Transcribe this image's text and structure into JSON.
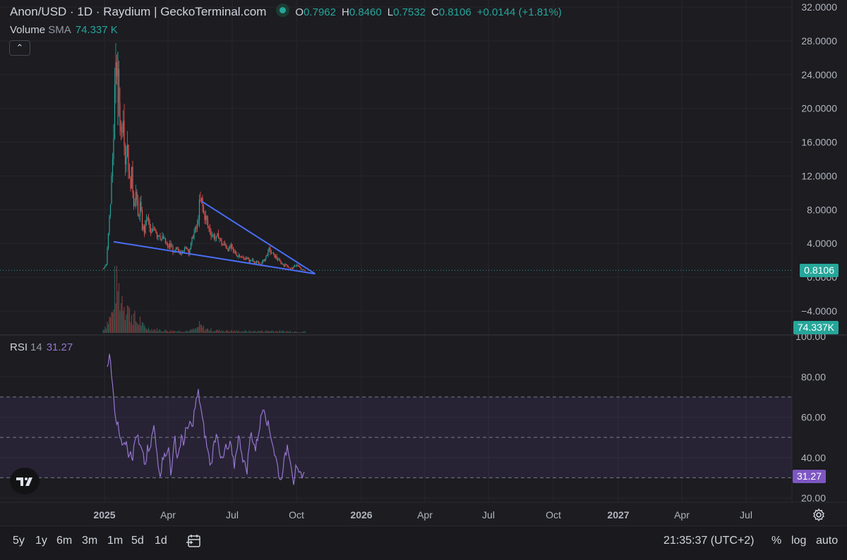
{
  "header": {
    "symbol": "Anon/USD · 1D · Raydium | GeckoTerminal.com",
    "open_label": "O",
    "open": "0.7962",
    "high_label": "H",
    "high": "0.8460",
    "low_label": "L",
    "low": "0.7532",
    "close_label": "C",
    "close": "0.8106",
    "change": "+0.0144 (+1.81%)"
  },
  "volume_legend": {
    "name": "Volume",
    "sma_label": "SMA",
    "value": "74.337 K"
  },
  "rsi_legend": {
    "name": "RSI",
    "length": "14",
    "value": "31.27"
  },
  "collapse_icon": "chevron-up-icon",
  "price_axis": {
    "ticks": [
      "32.0000",
      "28.0000",
      "24.0000",
      "20.0000",
      "16.0000",
      "12.0000",
      "8.0000",
      "4.0000",
      "0.0000",
      "−4.0000"
    ],
    "last_price": "0.8106",
    "volume_value": "74.337K"
  },
  "rsi_axis": {
    "ticks": [
      "100.00",
      "80.00",
      "60.00",
      "40.00",
      "20.00"
    ],
    "last_value": "31.27"
  },
  "time_axis": {
    "labels": [
      "2025",
      "Apr",
      "Jul",
      "Oct",
      "2026",
      "Apr",
      "Jul",
      "Oct",
      "2027",
      "Apr",
      "Jul"
    ],
    "bold": [
      true,
      false,
      false,
      false,
      true,
      false,
      false,
      false,
      true,
      false,
      false
    ]
  },
  "bottom_bar": {
    "timeframes": [
      "5y",
      "1y",
      "6m",
      "3m",
      "1m",
      "5d",
      "1d"
    ],
    "compare_icon": "compare-dates-icon",
    "clock": "21:35:37 (UTC+2)",
    "percent_label": "%",
    "log_label": "log",
    "auto_label": "auto"
  },
  "settings_icon": "gear-icon",
  "logo": "tradingview-logo",
  "colors": {
    "background": "#1c1c21",
    "up": "#26a69a",
    "down": "#ef5350",
    "rsi": "#9575cd",
    "trendline": "#4a6ef5",
    "price_tag": "#26a69a",
    "rsi_tag": "#7e57c2"
  },
  "chart_data": {
    "type": "candlestick",
    "price_ylim": [
      -6,
      33
    ],
    "rsi_ylim": [
      15,
      100
    ],
    "rsi_bands": [
      30,
      50,
      70
    ],
    "price_path": [
      [
        0,
        1.0
      ],
      [
        3,
        1.5
      ],
      [
        5,
        5
      ],
      [
        7,
        9
      ],
      [
        9,
        14
      ],
      [
        11,
        22
      ],
      [
        13,
        25
      ],
      [
        15,
        21
      ],
      [
        17,
        17
      ],
      [
        19,
        20
      ],
      [
        21,
        14
      ],
      [
        23,
        16
      ],
      [
        25,
        11
      ],
      [
        27,
        12
      ],
      [
        29,
        9
      ],
      [
        31,
        10
      ],
      [
        33,
        7
      ],
      [
        35,
        8.5
      ],
      [
        37,
        6
      ],
      [
        39,
        5.5
      ],
      [
        41,
        7
      ],
      [
        43,
        6.5
      ],
      [
        45,
        5
      ],
      [
        47,
        5.5
      ],
      [
        49,
        6
      ],
      [
        51,
        5
      ],
      [
        53,
        5.2
      ],
      [
        55,
        4.5
      ],
      [
        57,
        4.6
      ],
      [
        59,
        4
      ],
      [
        61,
        3.5
      ],
      [
        63,
        3.8
      ],
      [
        65,
        3.5
      ],
      [
        67,
        2.8
      ],
      [
        69,
        3.3
      ],
      [
        71,
        3.0
      ],
      [
        73,
        2.9
      ],
      [
        75,
        3.4
      ],
      [
        77,
        3.2
      ],
      [
        79,
        3.6
      ],
      [
        81,
        3.0
      ],
      [
        83,
        3.8
      ],
      [
        85,
        5
      ],
      [
        87,
        5.5
      ],
      [
        89,
        6
      ],
      [
        91,
        8.5
      ],
      [
        93,
        9
      ],
      [
        95,
        7.5
      ],
      [
        97,
        7
      ],
      [
        99,
        6
      ],
      [
        101,
        5.5
      ],
      [
        103,
        5
      ],
      [
        105,
        4.8
      ],
      [
        107,
        4.5
      ],
      [
        109,
        5
      ],
      [
        111,
        4.2
      ],
      [
        113,
        3.8
      ],
      [
        115,
        3.9
      ],
      [
        117,
        3.5
      ],
      [
        119,
        3.3
      ],
      [
        121,
        3.6
      ],
      [
        123,
        3.0
      ],
      [
        125,
        2.9
      ],
      [
        127,
        2.5
      ],
      [
        129,
        2.7
      ],
      [
        131,
        2.3
      ],
      [
        133,
        2.1
      ],
      [
        135,
        2.4
      ],
      [
        137,
        2.0
      ],
      [
        139,
        1.9
      ],
      [
        141,
        2.1
      ],
      [
        143,
        1.8
      ],
      [
        145,
        1.7
      ],
      [
        147,
        1.6
      ],
      [
        149,
        1.5
      ],
      [
        151,
        1.9
      ],
      [
        153,
        2.2
      ],
      [
        155,
        2.8
      ],
      [
        157,
        3.2
      ],
      [
        159,
        2.9
      ],
      [
        161,
        2.6
      ],
      [
        163,
        2.4
      ],
      [
        165,
        2.1
      ],
      [
        167,
        1.8
      ],
      [
        169,
        1.6
      ],
      [
        171,
        1.4
      ],
      [
        173,
        1.5
      ],
      [
        175,
        1.2
      ],
      [
        177,
        1.0
      ],
      [
        179,
        1.1
      ],
      [
        181,
        1.3
      ],
      [
        183,
        1.5
      ],
      [
        185,
        1.2
      ],
      [
        187,
        0.9
      ],
      [
        189,
        0.8
      ],
      [
        191,
        0.81
      ]
    ],
    "volume_path": [
      [
        0,
        0.5
      ],
      [
        9,
        3
      ],
      [
        11,
        9
      ],
      [
        13,
        8
      ],
      [
        15,
        6.5
      ],
      [
        17,
        5
      ],
      [
        19,
        6
      ],
      [
        21,
        4
      ],
      [
        23,
        4.5
      ],
      [
        25,
        3
      ],
      [
        27,
        3
      ],
      [
        29,
        2.5
      ],
      [
        31,
        2
      ],
      [
        33,
        1.5
      ],
      [
        35,
        2
      ],
      [
        37,
        1.2
      ],
      [
        40,
        0.8
      ],
      [
        45,
        0.6
      ],
      [
        50,
        0.5
      ],
      [
        55,
        0.4
      ],
      [
        60,
        0.35
      ],
      [
        70,
        0.3
      ],
      [
        80,
        0.3
      ],
      [
        88,
        0.6
      ],
      [
        91,
        1.2
      ],
      [
        93,
        1.0
      ],
      [
        97,
        0.6
      ],
      [
        105,
        0.4
      ],
      [
        120,
        0.3
      ],
      [
        140,
        0.25
      ],
      [
        160,
        0.3
      ],
      [
        170,
        0.25
      ],
      [
        191,
        0.2
      ]
    ],
    "rsi_path": [
      [
        4,
        85
      ],
      [
        6,
        93
      ],
      [
        8,
        80
      ],
      [
        10,
        70
      ],
      [
        12,
        60
      ],
      [
        14,
        56
      ],
      [
        16,
        52
      ],
      [
        18,
        48
      ],
      [
        20,
        45
      ],
      [
        22,
        50
      ],
      [
        24,
        42
      ],
      [
        26,
        44
      ],
      [
        28,
        40
      ],
      [
        30,
        48
      ],
      [
        32,
        52
      ],
      [
        34,
        46
      ],
      [
        36,
        44
      ],
      [
        38,
        40
      ],
      [
        40,
        36
      ],
      [
        42,
        44
      ],
      [
        44,
        42
      ],
      [
        46,
        50
      ],
      [
        48,
        55
      ],
      [
        50,
        46
      ],
      [
        52,
        38
      ],
      [
        54,
        32
      ],
      [
        56,
        38
      ],
      [
        58,
        44
      ],
      [
        60,
        40
      ],
      [
        62,
        45
      ],
      [
        64,
        33
      ],
      [
        66,
        40
      ],
      [
        68,
        50
      ],
      [
        70,
        40
      ],
      [
        72,
        44
      ],
      [
        74,
        50
      ],
      [
        76,
        46
      ],
      [
        78,
        55
      ],
      [
        80,
        52
      ],
      [
        82,
        58
      ],
      [
        84,
        54
      ],
      [
        86,
        62
      ],
      [
        88,
        68
      ],
      [
        90,
        72
      ],
      [
        92,
        66
      ],
      [
        94,
        58
      ],
      [
        96,
        52
      ],
      [
        98,
        46
      ],
      [
        100,
        40
      ],
      [
        102,
        36
      ],
      [
        104,
        44
      ],
      [
        106,
        50
      ],
      [
        108,
        52
      ],
      [
        110,
        44
      ],
      [
        112,
        38
      ],
      [
        114,
        40
      ],
      [
        116,
        46
      ],
      [
        118,
        42
      ],
      [
        120,
        48
      ],
      [
        122,
        40
      ],
      [
        124,
        36
      ],
      [
        126,
        44
      ],
      [
        128,
        50
      ],
      [
        130,
        46
      ],
      [
        132,
        40
      ],
      [
        134,
        36
      ],
      [
        136,
        34
      ],
      [
        138,
        46
      ],
      [
        140,
        52
      ],
      [
        142,
        48
      ],
      [
        144,
        44
      ],
      [
        146,
        50
      ],
      [
        148,
        56
      ],
      [
        150,
        62
      ],
      [
        152,
        66
      ],
      [
        154,
        60
      ],
      [
        156,
        56
      ],
      [
        158,
        52
      ],
      [
        160,
        48
      ],
      [
        162,
        42
      ],
      [
        164,
        38
      ],
      [
        166,
        32
      ],
      [
        168,
        28
      ],
      [
        170,
        36
      ],
      [
        172,
        40
      ],
      [
        174,
        46
      ],
      [
        176,
        42
      ],
      [
        178,
        36
      ],
      [
        180,
        28
      ],
      [
        182,
        34
      ],
      [
        184,
        32
      ],
      [
        186,
        31
      ],
      [
        188,
        32
      ],
      [
        190,
        31.27
      ]
    ],
    "trendlines": [
      {
        "from": [
          93,
          9.0
        ],
        "to": [
          191,
          0.4
        ]
      },
      {
        "from": [
          10,
          4.2
        ],
        "to": [
          191,
          0.4
        ]
      }
    ]
  }
}
